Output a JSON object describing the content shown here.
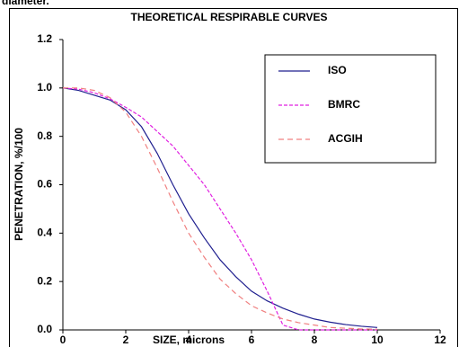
{
  "caption": "diameter.",
  "chart_data": {
    "type": "line",
    "title": "THEORETICAL RESPIRABLE CURVES",
    "x_label": "SIZE, microns",
    "y_label": "PENETRATION, %/100",
    "x": [
      0,
      0.5,
      1,
      1.5,
      2,
      2.5,
      3,
      3.5,
      4,
      4.5,
      5,
      5.5,
      6,
      6.5,
      7,
      7.5,
      8,
      8.5,
      9,
      9.5,
      10
    ],
    "series": [
      {
        "name": "ISO",
        "color": "#1f1f8f",
        "dash": "none",
        "values": [
          1.0,
          0.99,
          0.97,
          0.95,
          0.91,
          0.84,
          0.73,
          0.6,
          0.48,
          0.38,
          0.29,
          0.22,
          0.16,
          0.12,
          0.09,
          0.065,
          0.045,
          0.032,
          0.022,
          0.015,
          0.01
        ]
      },
      {
        "name": "BMRC",
        "color": "#e020e0",
        "dash": "4,2",
        "values": [
          1.0,
          0.995,
          0.98,
          0.955,
          0.92,
          0.88,
          0.82,
          0.76,
          0.68,
          0.6,
          0.5,
          0.4,
          0.29,
          0.16,
          0.02,
          0,
          0,
          0,
          0,
          0,
          0
        ]
      },
      {
        "name": "ACGIH",
        "color": "#f08080",
        "dash": "6,4",
        "values": [
          1.0,
          1.0,
          0.99,
          0.96,
          0.9,
          0.8,
          0.67,
          0.53,
          0.4,
          0.3,
          0.21,
          0.15,
          0.1,
          0.07,
          0.045,
          0.03,
          0.02,
          0.01,
          0.007,
          0.004,
          0.003
        ]
      }
    ],
    "xlim": [
      0,
      12
    ],
    "xticks": [
      0,
      2,
      4,
      6,
      8,
      10,
      12
    ],
    "ylim": [
      0,
      1.2
    ],
    "yticks": [
      {
        "value": 0,
        "label": "0.0"
      },
      0.2,
      0.4,
      0.6,
      0.8,
      {
        "value": 1,
        "label": "1.0"
      },
      1.2
    ],
    "legend": "top-right"
  }
}
